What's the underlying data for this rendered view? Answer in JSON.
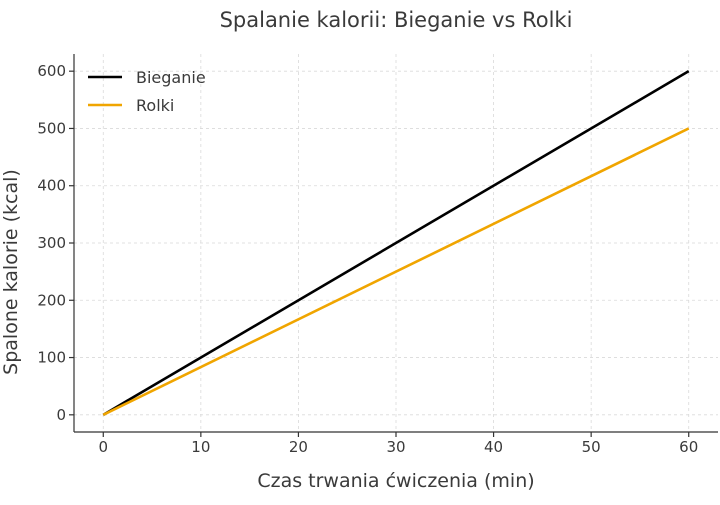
{
  "chart_data": {
    "type": "line",
    "title": "Spalanie kalorii: Bieganie vs Rolki",
    "xlabel": "Czas trwania ćwiczenia (min)",
    "ylabel": "Spalone kalorie (kcal)",
    "xlim": [
      -3,
      63
    ],
    "ylim": [
      -30,
      630
    ],
    "x_ticks": [
      0,
      10,
      20,
      30,
      40,
      50,
      60
    ],
    "y_ticks": [
      0,
      100,
      200,
      300,
      400,
      500,
      600
    ],
    "grid": true,
    "legend_position": "top-left",
    "series": [
      {
        "name": "Bieganie",
        "color": "#000000",
        "x": [
          0,
          60
        ],
        "y": [
          0,
          600
        ]
      },
      {
        "name": "Rolki",
        "color": "#f0a500",
        "x": [
          0,
          60
        ],
        "y": [
          0,
          500
        ]
      }
    ]
  }
}
